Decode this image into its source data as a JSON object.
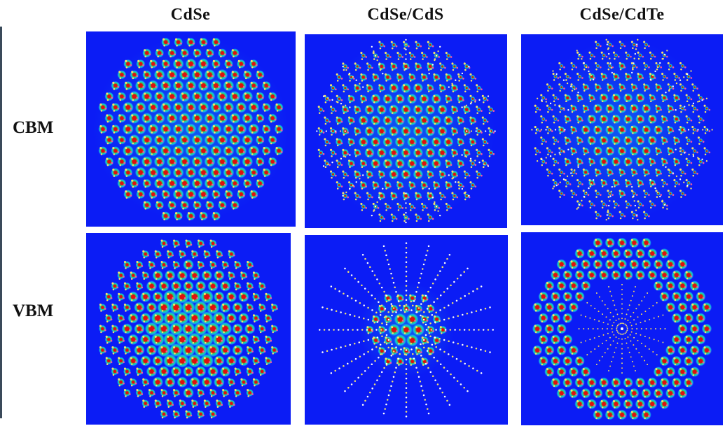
{
  "figure": {
    "columns": [
      "CdSe",
      "CdSe/CdS",
      "CdSe/CdTe"
    ],
    "rows": [
      "CBM",
      "VBM"
    ],
    "panels": [
      {
        "row": "CBM",
        "column": "CdSe",
        "pattern": "hex-lattice-dense"
      },
      {
        "row": "CBM",
        "column": "CdSe/CdS",
        "pattern": "hex-lattice-spokes"
      },
      {
        "row": "CBM",
        "column": "CdSe/CdTe",
        "pattern": "hex-lattice-spokes-sparse"
      },
      {
        "row": "VBM",
        "column": "CdSe",
        "pattern": "core-localized"
      },
      {
        "row": "VBM",
        "column": "CdSe/CdS",
        "pattern": "radial-spokes"
      },
      {
        "row": "VBM",
        "column": "CdSe/CdTe",
        "pattern": "shell-ring"
      }
    ],
    "colors": {
      "background": "#0b1cf5",
      "density_high": "#e0100c",
      "density_mid": "#1fe07a",
      "density_low": "#18c8e8",
      "atom_cation": "#f5e26a",
      "atom_anion": "#f05aa0"
    }
  }
}
